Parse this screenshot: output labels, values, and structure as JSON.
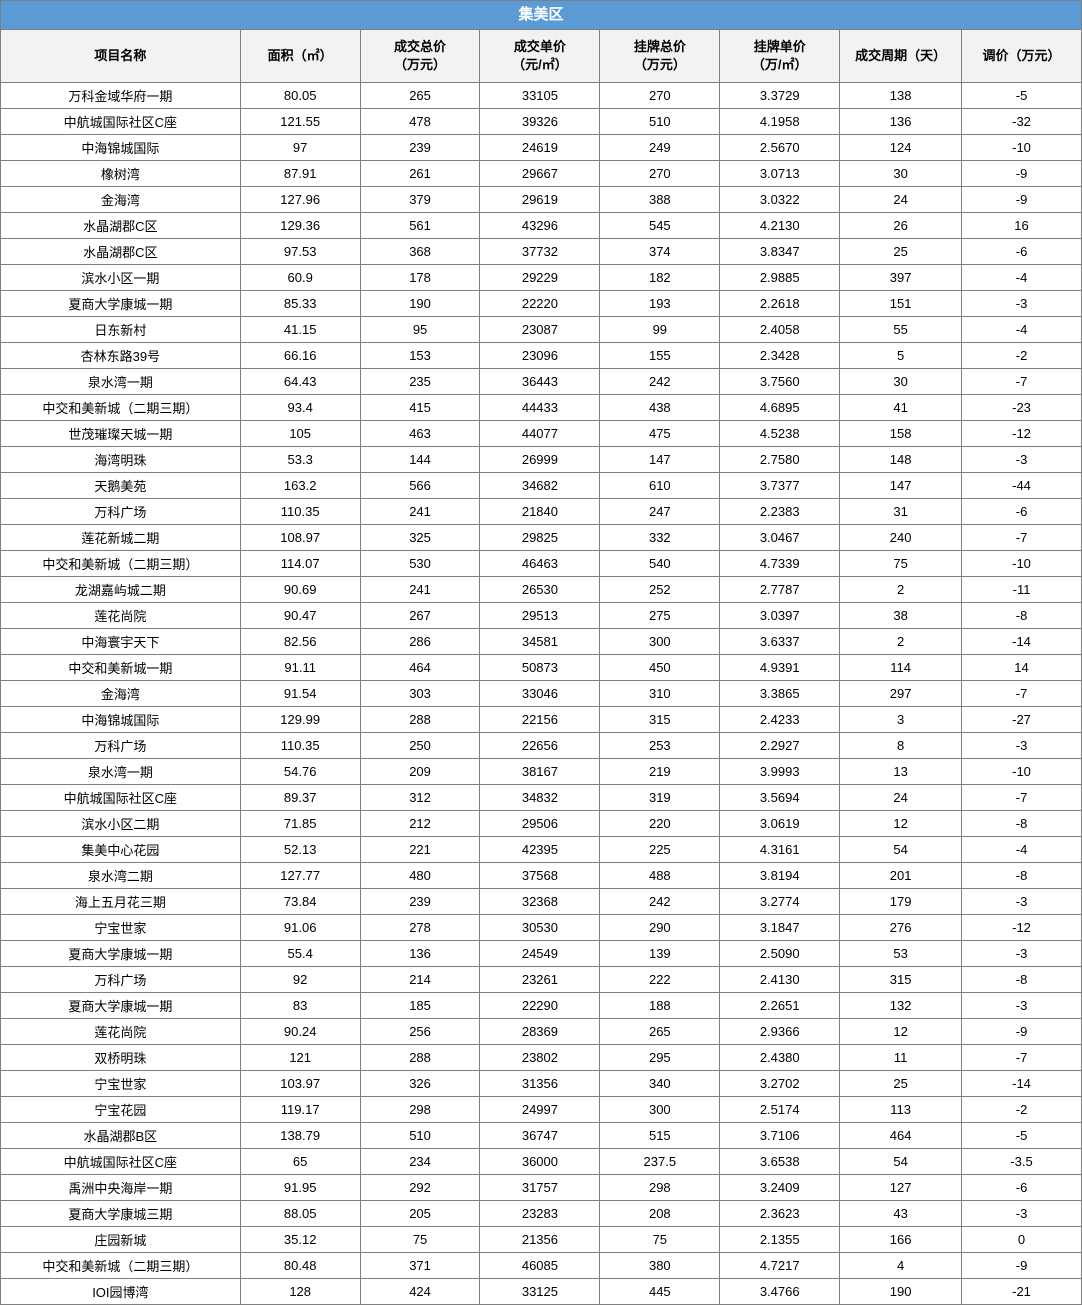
{
  "title": "集美区",
  "title_bg_color": "#5b9bd5",
  "title_text_color": "#ffffff",
  "header_bg_color": "#f2f2f2",
  "border_color": "#7f7f7f",
  "columns": [
    "项目名称",
    "面积（㎡）",
    "成交总价（万元）",
    "成交单价（元/㎡）",
    "挂牌总价（万元）",
    "挂牌单价（万/㎡）",
    "成交周期（天）",
    "调价（万元）"
  ],
  "rows": [
    [
      "万科金域华府一期",
      "80.05",
      "265",
      "33105",
      "270",
      "3.3729",
      "138",
      "-5"
    ],
    [
      "中航城国际社区C座",
      "121.55",
      "478",
      "39326",
      "510",
      "4.1958",
      "136",
      "-32"
    ],
    [
      "中海锦城国际",
      "97",
      "239",
      "24619",
      "249",
      "2.5670",
      "124",
      "-10"
    ],
    [
      "橡树湾",
      "87.91",
      "261",
      "29667",
      "270",
      "3.0713",
      "30",
      "-9"
    ],
    [
      "金海湾",
      "127.96",
      "379",
      "29619",
      "388",
      "3.0322",
      "24",
      "-9"
    ],
    [
      "水晶湖郡C区",
      "129.36",
      "561",
      "43296",
      "545",
      "4.2130",
      "26",
      "16"
    ],
    [
      "水晶湖郡C区",
      "97.53",
      "368",
      "37732",
      "374",
      "3.8347",
      "25",
      "-6"
    ],
    [
      "滨水小区一期",
      "60.9",
      "178",
      "29229",
      "182",
      "2.9885",
      "397",
      "-4"
    ],
    [
      "夏商大学康城一期",
      "85.33",
      "190",
      "22220",
      "193",
      "2.2618",
      "151",
      "-3"
    ],
    [
      "日东新村",
      "41.15",
      "95",
      "23087",
      "99",
      "2.4058",
      "55",
      "-4"
    ],
    [
      "杏林东路39号",
      "66.16",
      "153",
      "23096",
      "155",
      "2.3428",
      "5",
      "-2"
    ],
    [
      "泉水湾一期",
      "64.43",
      "235",
      "36443",
      "242",
      "3.7560",
      "30",
      "-7"
    ],
    [
      "中交和美新城（二期三期）",
      "93.4",
      "415",
      "44433",
      "438",
      "4.6895",
      "41",
      "-23"
    ],
    [
      "世茂璀璨天城一期",
      "105",
      "463",
      "44077",
      "475",
      "4.5238",
      "158",
      "-12"
    ],
    [
      "海湾明珠",
      "53.3",
      "144",
      "26999",
      "147",
      "2.7580",
      "148",
      "-3"
    ],
    [
      "天鹅美苑",
      "163.2",
      "566",
      "34682",
      "610",
      "3.7377",
      "147",
      "-44"
    ],
    [
      "万科广场",
      "110.35",
      "241",
      "21840",
      "247",
      "2.2383",
      "31",
      "-6"
    ],
    [
      "莲花新城二期",
      "108.97",
      "325",
      "29825",
      "332",
      "3.0467",
      "240",
      "-7"
    ],
    [
      "中交和美新城（二期三期）",
      "114.07",
      "530",
      "46463",
      "540",
      "4.7339",
      "75",
      "-10"
    ],
    [
      "龙湖嘉屿城二期",
      "90.69",
      "241",
      "26530",
      "252",
      "2.7787",
      "2",
      "-11"
    ],
    [
      "莲花尚院",
      "90.47",
      "267",
      "29513",
      "275",
      "3.0397",
      "38",
      "-8"
    ],
    [
      "中海寰宇天下",
      "82.56",
      "286",
      "34581",
      "300",
      "3.6337",
      "2",
      "-14"
    ],
    [
      "中交和美新城一期",
      "91.11",
      "464",
      "50873",
      "450",
      "4.9391",
      "114",
      "14"
    ],
    [
      "金海湾",
      "91.54",
      "303",
      "33046",
      "310",
      "3.3865",
      "297",
      "-7"
    ],
    [
      "中海锦城国际",
      "129.99",
      "288",
      "22156",
      "315",
      "2.4233",
      "3",
      "-27"
    ],
    [
      "万科广场",
      "110.35",
      "250",
      "22656",
      "253",
      "2.2927",
      "8",
      "-3"
    ],
    [
      "泉水湾一期",
      "54.76",
      "209",
      "38167",
      "219",
      "3.9993",
      "13",
      "-10"
    ],
    [
      "中航城国际社区C座",
      "89.37",
      "312",
      "34832",
      "319",
      "3.5694",
      "24",
      "-7"
    ],
    [
      "滨水小区二期",
      "71.85",
      "212",
      "29506",
      "220",
      "3.0619",
      "12",
      "-8"
    ],
    [
      "集美中心花园",
      "52.13",
      "221",
      "42395",
      "225",
      "4.3161",
      "54",
      "-4"
    ],
    [
      "泉水湾二期",
      "127.77",
      "480",
      "37568",
      "488",
      "3.8194",
      "201",
      "-8"
    ],
    [
      "海上五月花三期",
      "73.84",
      "239",
      "32368",
      "242",
      "3.2774",
      "179",
      "-3"
    ],
    [
      "宁宝世家",
      "91.06",
      "278",
      "30530",
      "290",
      "3.1847",
      "276",
      "-12"
    ],
    [
      "夏商大学康城一期",
      "55.4",
      "136",
      "24549",
      "139",
      "2.5090",
      "53",
      "-3"
    ],
    [
      "万科广场",
      "92",
      "214",
      "23261",
      "222",
      "2.4130",
      "315",
      "-8"
    ],
    [
      "夏商大学康城一期",
      "83",
      "185",
      "22290",
      "188",
      "2.2651",
      "132",
      "-3"
    ],
    [
      "莲花尚院",
      "90.24",
      "256",
      "28369",
      "265",
      "2.9366",
      "12",
      "-9"
    ],
    [
      "双桥明珠",
      "121",
      "288",
      "23802",
      "295",
      "2.4380",
      "11",
      "-7"
    ],
    [
      "宁宝世家",
      "103.97",
      "326",
      "31356",
      "340",
      "3.2702",
      "25",
      "-14"
    ],
    [
      "宁宝花园",
      "119.17",
      "298",
      "24997",
      "300",
      "2.5174",
      "113",
      "-2"
    ],
    [
      "水晶湖郡B区",
      "138.79",
      "510",
      "36747",
      "515",
      "3.7106",
      "464",
      "-5"
    ],
    [
      "中航城国际社区C座",
      "65",
      "234",
      "36000",
      "237.5",
      "3.6538",
      "54",
      "-3.5"
    ],
    [
      "禹洲中央海岸一期",
      "91.95",
      "292",
      "31757",
      "298",
      "3.2409",
      "127",
      "-6"
    ],
    [
      "夏商大学康城三期",
      "88.05",
      "205",
      "23283",
      "208",
      "2.3623",
      "43",
      "-3"
    ],
    [
      "庄园新城",
      "35.12",
      "75",
      "21356",
      "75",
      "2.1355",
      "166",
      "0"
    ],
    [
      "中交和美新城（二期三期）",
      "80.48",
      "371",
      "46085",
      "380",
      "4.7217",
      "4",
      "-9"
    ],
    [
      "IOI园博湾",
      "128",
      "424",
      "33125",
      "445",
      "3.4766",
      "190",
      "-21"
    ]
  ]
}
